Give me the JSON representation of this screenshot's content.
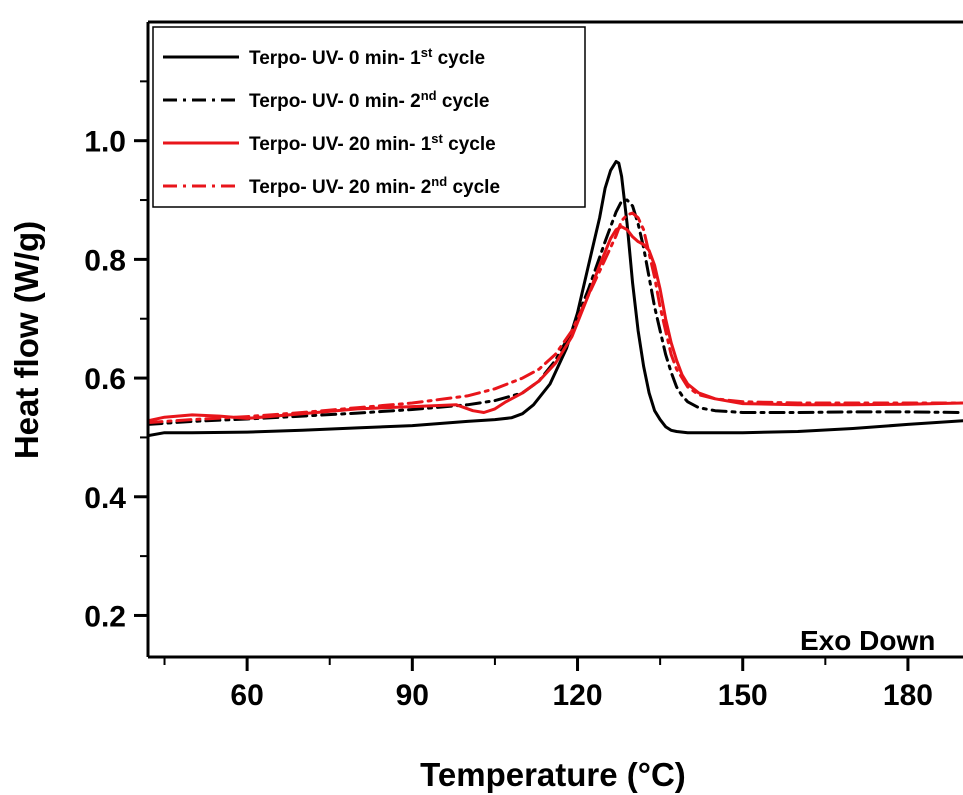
{
  "chart_data": {
    "type": "line",
    "title": "",
    "xlabel": "Temperature (°C)",
    "ylabel": "Heat flow (W/g)",
    "xlim": [
      42,
      190
    ],
    "ylim": [
      0.13,
      1.2
    ],
    "xticks": [
      60,
      90,
      120,
      150,
      180
    ],
    "yticks": [
      0.2,
      0.4,
      0.6,
      0.8,
      1.0
    ],
    "xtick_labels": [
      "60",
      "90",
      "120",
      "150",
      "180"
    ],
    "ytick_labels": [
      "0.2",
      "0.4",
      "0.6",
      "0.8",
      "1.0"
    ],
    "legend_position": "top-left",
    "annotation": "Exo Down",
    "series": [
      {
        "label_main": "Terpo- UV- 0 min- 1",
        "label_sup": "st",
        "label_tail": " cycle",
        "color": "#000000",
        "dash": "solid",
        "x": [
          42,
          45,
          50,
          60,
          70,
          80,
          90,
          100,
          105,
          108,
          110,
          112,
          115,
          118,
          120,
          122,
          124,
          125,
          126,
          127,
          127.5,
          128,
          129,
          130,
          131,
          132,
          133,
          134,
          135,
          136,
          137,
          138,
          140,
          145,
          150,
          160,
          170,
          180,
          190
        ],
        "y": [
          0.503,
          0.508,
          0.508,
          0.509,
          0.512,
          0.516,
          0.52,
          0.527,
          0.53,
          0.533,
          0.54,
          0.555,
          0.59,
          0.65,
          0.71,
          0.79,
          0.87,
          0.92,
          0.95,
          0.965,
          0.962,
          0.94,
          0.86,
          0.76,
          0.68,
          0.62,
          0.575,
          0.545,
          0.53,
          0.518,
          0.512,
          0.51,
          0.508,
          0.508,
          0.508,
          0.51,
          0.515,
          0.522,
          0.528
        ]
      },
      {
        "label_main": "Terpo- UV- 0 min- 2",
        "label_sup": "nd",
        "label_tail": " cycle",
        "color": "#000000",
        "dash": "dashdot",
        "x": [
          42,
          50,
          60,
          70,
          80,
          90,
          100,
          105,
          110,
          113,
          116,
          119,
          122,
          125,
          127,
          128,
          129,
          130,
          131,
          132,
          133,
          134,
          135,
          136,
          137,
          138,
          139,
          140,
          142,
          145,
          150,
          160,
          170,
          180,
          190
        ],
        "y": [
          0.522,
          0.527,
          0.531,
          0.536,
          0.541,
          0.547,
          0.555,
          0.562,
          0.575,
          0.595,
          0.63,
          0.68,
          0.75,
          0.83,
          0.88,
          0.898,
          0.9,
          0.89,
          0.86,
          0.82,
          0.77,
          0.72,
          0.68,
          0.64,
          0.61,
          0.585,
          0.57,
          0.56,
          0.55,
          0.545,
          0.542,
          0.542,
          0.543,
          0.543,
          0.542
        ]
      },
      {
        "label_main": "Terpo- UV- 20 min- 1",
        "label_sup": "st",
        "label_tail": " cycle",
        "color": "#e8151b",
        "dash": "solid",
        "x": [
          42,
          45,
          50,
          55,
          60,
          70,
          80,
          90,
          98,
          101,
          103,
          105,
          107,
          110,
          113,
          116,
          119,
          122,
          124,
          126,
          127,
          128,
          129,
          130,
          131,
          132,
          133,
          134,
          135,
          136,
          137,
          138,
          139,
          140,
          142,
          145,
          150,
          160,
          170,
          180,
          190
        ],
        "y": [
          0.528,
          0.534,
          0.538,
          0.536,
          0.532,
          0.54,
          0.548,
          0.552,
          0.555,
          0.545,
          0.542,
          0.548,
          0.56,
          0.575,
          0.595,
          0.625,
          0.67,
          0.74,
          0.79,
          0.835,
          0.85,
          0.855,
          0.85,
          0.838,
          0.83,
          0.825,
          0.815,
          0.79,
          0.75,
          0.7,
          0.66,
          0.63,
          0.605,
          0.59,
          0.575,
          0.565,
          0.557,
          0.555,
          0.555,
          0.556,
          0.558
        ]
      },
      {
        "label_main": "Terpo- UV- 20 min- 2",
        "label_sup": "nd",
        "label_tail": " cycle",
        "color": "#e8151b",
        "dash": "dashdot",
        "x": [
          42,
          50,
          60,
          70,
          80,
          90,
          100,
          105,
          110,
          113,
          116,
          119,
          122,
          125,
          127,
          128,
          129,
          130,
          131,
          132,
          133,
          134,
          135,
          136,
          137,
          138,
          139,
          140,
          142,
          145,
          150,
          160,
          170,
          180,
          190
        ],
        "y": [
          0.525,
          0.53,
          0.535,
          0.542,
          0.55,
          0.558,
          0.57,
          0.582,
          0.6,
          0.615,
          0.64,
          0.68,
          0.74,
          0.8,
          0.84,
          0.865,
          0.875,
          0.878,
          0.87,
          0.85,
          0.81,
          0.77,
          0.72,
          0.68,
          0.64,
          0.615,
          0.6,
          0.585,
          0.572,
          0.565,
          0.56,
          0.558,
          0.558,
          0.558,
          0.558
        ]
      }
    ]
  }
}
